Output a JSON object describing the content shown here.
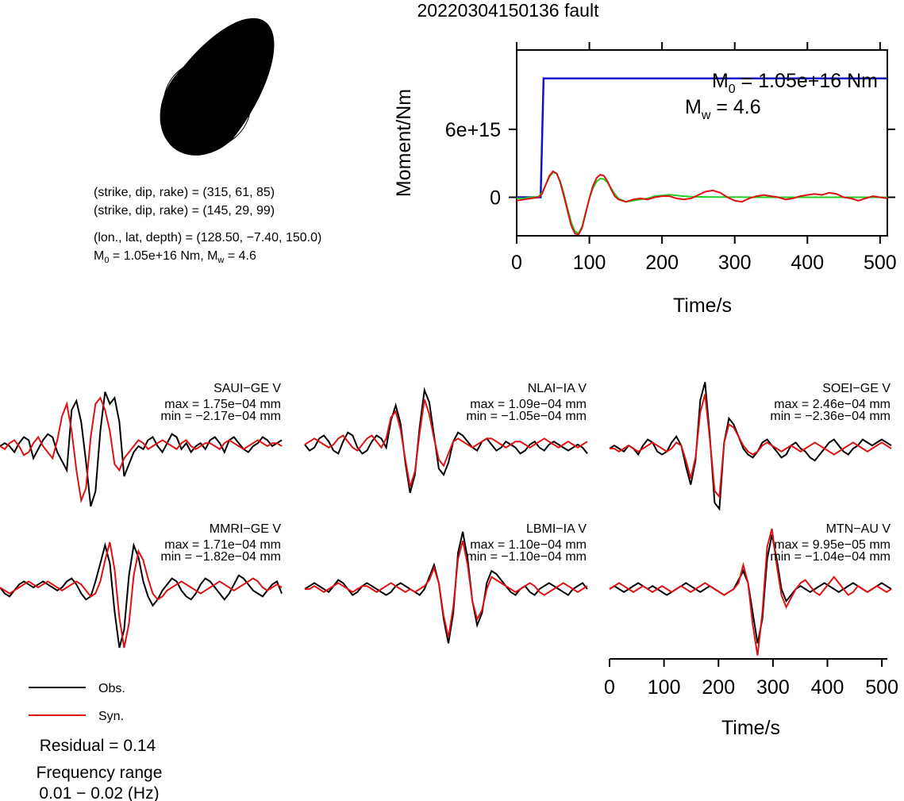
{
  "title": "20220304150136 fault",
  "colors": {
    "observed": "#000000",
    "synthetic": "#dd1111",
    "moment": "#1111cc",
    "rate": "#22cc22",
    "beachball": "#000000"
  },
  "focal": {
    "line1": "(strike, dip, rake) = (315, 61, 85)",
    "line2": "(strike, dip, rake) = (145, 29, 99)",
    "line3": "(lon., lat, depth) = (128.50, −7.40, 150.0)",
    "m0_label": "M",
    "m0_sub": "0",
    "m0_text": " = 1.05e+16 Nm, M",
    "mw_sub": "w",
    "mw_text": " = 4.6"
  },
  "moment_panel": {
    "m0_main": "M",
    "m0_sub": "0",
    "m0_value": " = 1.05e+16 Nm",
    "mw_main": "M",
    "mw_sub": "w",
    "mw_value": " = 4.6"
  },
  "legend": {
    "obs": "Obs.",
    "syn": "Syn."
  },
  "residual": "Residual = 0.14",
  "freq_label": "Frequency range",
  "freq_value": "0.01 − 0.02 (Hz)",
  "chart_data": [
    {
      "type": "line",
      "xlabel": "Time/s",
      "ylabel": "Moment/Nm",
      "xlim": [
        0,
        510
      ],
      "ylim": [
        -3400000000000000.0,
        1.3e+16
      ],
      "xticks": [
        0,
        100,
        200,
        300,
        400,
        500
      ],
      "xtick_labels": [
        "0",
        "100",
        "200",
        "300",
        "400",
        "500"
      ],
      "yticks": [
        0,
        6000000000000000.0
      ],
      "ytick_labels": [
        "0",
        "6e+15"
      ],
      "series": [
        {
          "x": [
            0,
            33,
            37,
            510
          ],
          "y": [
            0,
            0,
            1.05e+16,
            1.05e+16
          ]
        },
        {
          "x": [
            0,
            10,
            20,
            30,
            35,
            40,
            45,
            50,
            55,
            60,
            65,
            70,
            75,
            80,
            85,
            90,
            95,
            100,
            105,
            110,
            115,
            120,
            125,
            130,
            135,
            140,
            150,
            160,
            170,
            180,
            190,
            200,
            210,
            220,
            230,
            240,
            260,
            280,
            300,
            330,
            360,
            400,
            440,
            480,
            510
          ],
          "y": [
            -100000000000000.0,
            -100000000000000.0,
            0,
            50000000000000.0,
            400000000000000.0,
            1100000000000000.0,
            1800000000000000.0,
            2200000000000000.0,
            2100000000000000.0,
            1400000000000000.0,
            300000000000000.0,
            -1000000000000000.0,
            -2200000000000000.0,
            -3000000000000000.0,
            -3200000000000000.0,
            -2600000000000000.0,
            -1300000000000000.0,
            -100000000000000.0,
            800000000000000.0,
            1400000000000000.0,
            1650000000000000.0,
            1600000000000000.0,
            1300000000000000.0,
            800000000000000.0,
            300000000000000.0,
            -100000000000000.0,
            -400000000000000.0,
            -300000000000000.0,
            -200000000000000.0,
            -100000000000000.0,
            100000000000000.0,
            150000000000000.0,
            220000000000000.0,
            160000000000000.0,
            100000000000000.0,
            50000000000000.0,
            30000000000000.0,
            20000000000000.0,
            10000000000000.0,
            0,
            0,
            0,
            0,
            0,
            0
          ]
        },
        {
          "x": [
            0,
            10,
            20,
            30,
            35,
            40,
            45,
            50,
            55,
            60,
            65,
            70,
            75,
            80,
            85,
            90,
            95,
            100,
            105,
            110,
            115,
            120,
            125,
            130,
            135,
            140,
            150,
            160,
            170,
            180,
            190,
            200,
            210,
            220,
            230,
            240,
            250,
            260,
            270,
            280,
            290,
            300,
            310,
            320,
            330,
            340,
            350,
            360,
            370,
            380,
            390,
            400,
            410,
            420,
            430,
            440,
            450,
            460,
            470,
            480,
            490,
            500,
            510
          ],
          "y": [
            -300000000000000.0,
            -200000000000000.0,
            -100000000000000.0,
            0,
            300000000000000.0,
            1100000000000000.0,
            1900000000000000.0,
            2300000000000000.0,
            2100000000000000.0,
            1300000000000000.0,
            100000000000000.0,
            -1200000000000000.0,
            -2500000000000000.0,
            -3200000000000000.0,
            -3300000000000000.0,
            -2700000000000000.0,
            -1400000000000000.0,
            -100000000000000.0,
            1000000000000000.0,
            1700000000000000.0,
            2000000000000000.0,
            1900000000000000.0,
            1400000000000000.0,
            700000000000000.0,
            100000000000000.0,
            -200000000000000.0,
            -400000000000000.0,
            -200000000000000.0,
            -100000000000000.0,
            -200000000000000.0,
            0,
            100000000000000.0,
            100000000000000.0,
            -100000000000000.0,
            -200000000000000.0,
            -100000000000000.0,
            200000000000000.0,
            500000000000000.0,
            600000000000000.0,
            400000000000000.0,
            0,
            -300000000000000.0,
            -400000000000000.0,
            -100000000000000.0,
            100000000000000.0,
            200000000000000.0,
            100000000000000.0,
            0,
            -200000000000000.0,
            -100000000000000.0,
            100000000000000.0,
            200000000000000.0,
            300000000000000.0,
            200000000000000.0,
            400000000000000.0,
            300000000000000.0,
            0,
            -100000000000000.0,
            -300000000000000.0,
            -100000000000000.0,
            100000000000000.0,
            0,
            -100000000000000.0
          ]
        }
      ]
    },
    {
      "type": "line",
      "name": "seismograms",
      "xlabel": "Time/s",
      "xlim": [
        0,
        510
      ],
      "xticks": [
        0,
        100,
        200,
        300,
        400,
        500
      ],
      "xtick_labels": [
        "0",
        "100",
        "200",
        "300",
        "400",
        "500"
      ],
      "stations": [
        {
          "label": "SAUI−GE V",
          "max": "max = 1.75e−04 mm",
          "min": "min = −2.17e−04 mm",
          "obs": [
            0,
            1,
            0,
            -2,
            1,
            3,
            2,
            -4,
            -1,
            2,
            4,
            3,
            -2,
            -5,
            -8,
            12,
            15,
            8,
            -5,
            -20,
            -15,
            5,
            18,
            14,
            16,
            8,
            -10,
            -6,
            -2,
            0,
            -1,
            2,
            3,
            0,
            -2,
            1,
            4,
            3,
            -1,
            1,
            -2,
            0,
            1,
            -1,
            2,
            3,
            1,
            -2,
            2,
            3,
            1,
            -1,
            -2,
            0,
            1,
            3,
            2,
            0,
            1,
            2
          ],
          "syn": [
            0,
            -1,
            1,
            2,
            0,
            -3,
            -2,
            1,
            3,
            0,
            -2,
            -4,
            2,
            10,
            14,
            5,
            -8,
            -18,
            -14,
            3,
            14,
            16,
            12,
            5,
            -6,
            -8,
            -4,
            -2,
            0,
            2,
            1,
            -1,
            0,
            1,
            2,
            1,
            0,
            -1,
            1,
            2,
            0,
            -1,
            0,
            1,
            1,
            0,
            -1,
            1,
            2,
            1,
            0,
            -1,
            0,
            1,
            2,
            1,
            0,
            1,
            1,
            0
          ]
        },
        {
          "label": "NLAI−IA V",
          "max": "max = 1.09e−04 mm",
          "min": "min = −1.05e−04 mm",
          "obs": [
            0,
            -2,
            -1,
            2,
            3,
            1,
            -2,
            -3,
            1,
            4,
            3,
            -1,
            -3,
            -2,
            1,
            3,
            2,
            -1,
            8,
            13,
            7,
            -6,
            -16,
            -10,
            6,
            18,
            14,
            3,
            -8,
            -10,
            -6,
            1,
            4,
            3,
            1,
            -1,
            -2,
            1,
            2,
            0,
            -2,
            -1,
            1,
            0,
            -1,
            -3,
            -2,
            0,
            1,
            -1,
            -2,
            0,
            1,
            0,
            -1,
            -2,
            -1,
            0,
            -1,
            -3
          ],
          "syn": [
            0,
            1,
            2,
            1,
            0,
            -1,
            0,
            2,
            3,
            1,
            -1,
            -2,
            0,
            2,
            3,
            1,
            -1,
            2,
            9,
            11,
            5,
            -5,
            -14,
            -9,
            4,
            15,
            10,
            2,
            -5,
            -7,
            -3,
            1,
            2,
            1,
            0,
            -1,
            0,
            1,
            2,
            2,
            1,
            0,
            -1,
            0,
            1,
            1,
            0,
            -1,
            0,
            1,
            2,
            1,
            0,
            -1,
            0,
            1,
            0,
            -1,
            0,
            1
          ]
        },
        {
          "label": "SOEI−GE V",
          "max": "max = 2.46e−04 mm",
          "min": "min = −2.36e−04 mm",
          "obs": [
            0,
            1,
            0,
            -1,
            1,
            0,
            -2,
            1,
            3,
            2,
            -1,
            -2,
            -1,
            2,
            4,
            1,
            -6,
            -12,
            -4,
            16,
            22,
            4,
            -18,
            -20,
            2,
            10,
            8,
            4,
            0,
            -2,
            -3,
            -1,
            2,
            3,
            1,
            -1,
            -3,
            -2,
            1,
            2,
            0,
            -1,
            -3,
            -4,
            -2,
            0,
            2,
            3,
            1,
            -1,
            -2,
            0,
            1,
            3,
            2,
            1,
            2,
            3,
            2,
            1
          ],
          "syn": [
            0,
            0,
            -1,
            0,
            1,
            0,
            -1,
            0,
            1,
            2,
            1,
            0,
            -1,
            0,
            2,
            1,
            -4,
            -10,
            -3,
            12,
            18,
            3,
            -14,
            -16,
            2,
            8,
            7,
            4,
            1,
            -1,
            -2,
            -1,
            1,
            2,
            1,
            0,
            -1,
            0,
            1,
            0,
            -1,
            0,
            1,
            2,
            1,
            0,
            -1,
            -2,
            -1,
            0,
            1,
            2,
            1,
            0,
            -1,
            0,
            1,
            2,
            1,
            0
          ]
        },
        {
          "label": "MMRI−GE V",
          "max": "max = 1.71e−04 mm",
          "min": "min = −1.82e−04 mm",
          "obs": [
            0,
            -2,
            -3,
            -1,
            1,
            2,
            1,
            0,
            1,
            2,
            1,
            0,
            -1,
            0,
            2,
            3,
            1,
            -2,
            -4,
            -3,
            2,
            8,
            14,
            8,
            -8,
            -20,
            -14,
            4,
            14,
            10,
            2,
            -3,
            -6,
            -4,
            -1,
            1,
            3,
            2,
            -1,
            -3,
            -4,
            -2,
            1,
            3,
            2,
            0,
            -2,
            -4,
            -2,
            1,
            4,
            3,
            1,
            -1,
            -2,
            -3,
            -1,
            1,
            2,
            -2
          ],
          "syn": [
            0,
            -1,
            -2,
            -1,
            0,
            1,
            2,
            1,
            0,
            1,
            2,
            1,
            0,
            -1,
            0,
            1,
            2,
            1,
            -1,
            -3,
            -2,
            2,
            9,
            15,
            6,
            -10,
            -20,
            -12,
            4,
            12,
            9,
            3,
            -2,
            -4,
            -3,
            -1,
            0,
            1,
            2,
            1,
            0,
            -1,
            -2,
            -1,
            0,
            1,
            2,
            1,
            0,
            -1,
            0,
            1,
            2,
            3,
            2,
            0,
            -1,
            0,
            1,
            0
          ]
        },
        {
          "label": "LBMI−IA V",
          "max": "max = 1.10e−04 mm",
          "min": "min = −1.10e−04 mm",
          "obs": [
            0,
            1,
            2,
            1,
            0,
            -1,
            1,
            3,
            2,
            0,
            -2,
            -1,
            1,
            2,
            1,
            0,
            -1,
            -2,
            -1,
            1,
            2,
            1,
            0,
            -1,
            -2,
            0,
            4,
            8,
            2,
            -10,
            -18,
            -8,
            12,
            19,
            10,
            -4,
            -12,
            -8,
            2,
            6,
            5,
            3,
            1,
            -1,
            -2,
            0,
            1,
            -1,
            -2,
            0,
            1,
            2,
            1,
            0,
            -1,
            -2,
            0,
            1,
            2,
            0
          ],
          "syn": [
            0,
            0,
            1,
            0,
            -1,
            0,
            1,
            2,
            1,
            0,
            -1,
            0,
            1,
            1,
            0,
            -1,
            0,
            1,
            2,
            1,
            0,
            -1,
            0,
            -1,
            0,
            1,
            3,
            7,
            2,
            -9,
            -16,
            -6,
            10,
            16,
            8,
            -4,
            -10,
            -7,
            0,
            4,
            3,
            2,
            1,
            0,
            -1,
            0,
            1,
            2,
            1,
            -1,
            -2,
            -1,
            0,
            1,
            2,
            1,
            0,
            -1,
            0,
            1
          ]
        },
        {
          "label": "MTN−AU V",
          "max": "max = 9.95e−05 mm",
          "min": "min = −1.04e−04 mm",
          "obs": [
            0,
            1,
            0,
            -1,
            0,
            1,
            2,
            1,
            0,
            1,
            0,
            -1,
            -2,
            -1,
            0,
            1,
            2,
            1,
            0,
            -1,
            0,
            1,
            0,
            -1,
            -2,
            -1,
            0,
            3,
            6,
            2,
            -8,
            -18,
            -10,
            10,
            18,
            10,
            0,
            -4,
            -2,
            0,
            1,
            0,
            -1,
            0,
            1,
            2,
            1,
            0,
            -1,
            0,
            1,
            2,
            1,
            0,
            -1,
            0,
            1,
            2,
            1,
            0
          ],
          "syn": [
            0,
            1,
            2,
            1,
            0,
            -1,
            0,
            1,
            0,
            -1,
            0,
            1,
            0,
            -1,
            0,
            1,
            0,
            -1,
            0,
            1,
            2,
            1,
            0,
            -1,
            -2,
            -1,
            0,
            2,
            8,
            2,
            -12,
            -22,
            -8,
            14,
            20,
            8,
            -2,
            -6,
            -3,
            0,
            2,
            3,
            1,
            -1,
            -2,
            0,
            2,
            4,
            2,
            0,
            -2,
            -1,
            1,
            0,
            -1,
            0,
            1,
            0,
            -1,
            0
          ]
        }
      ]
    }
  ]
}
